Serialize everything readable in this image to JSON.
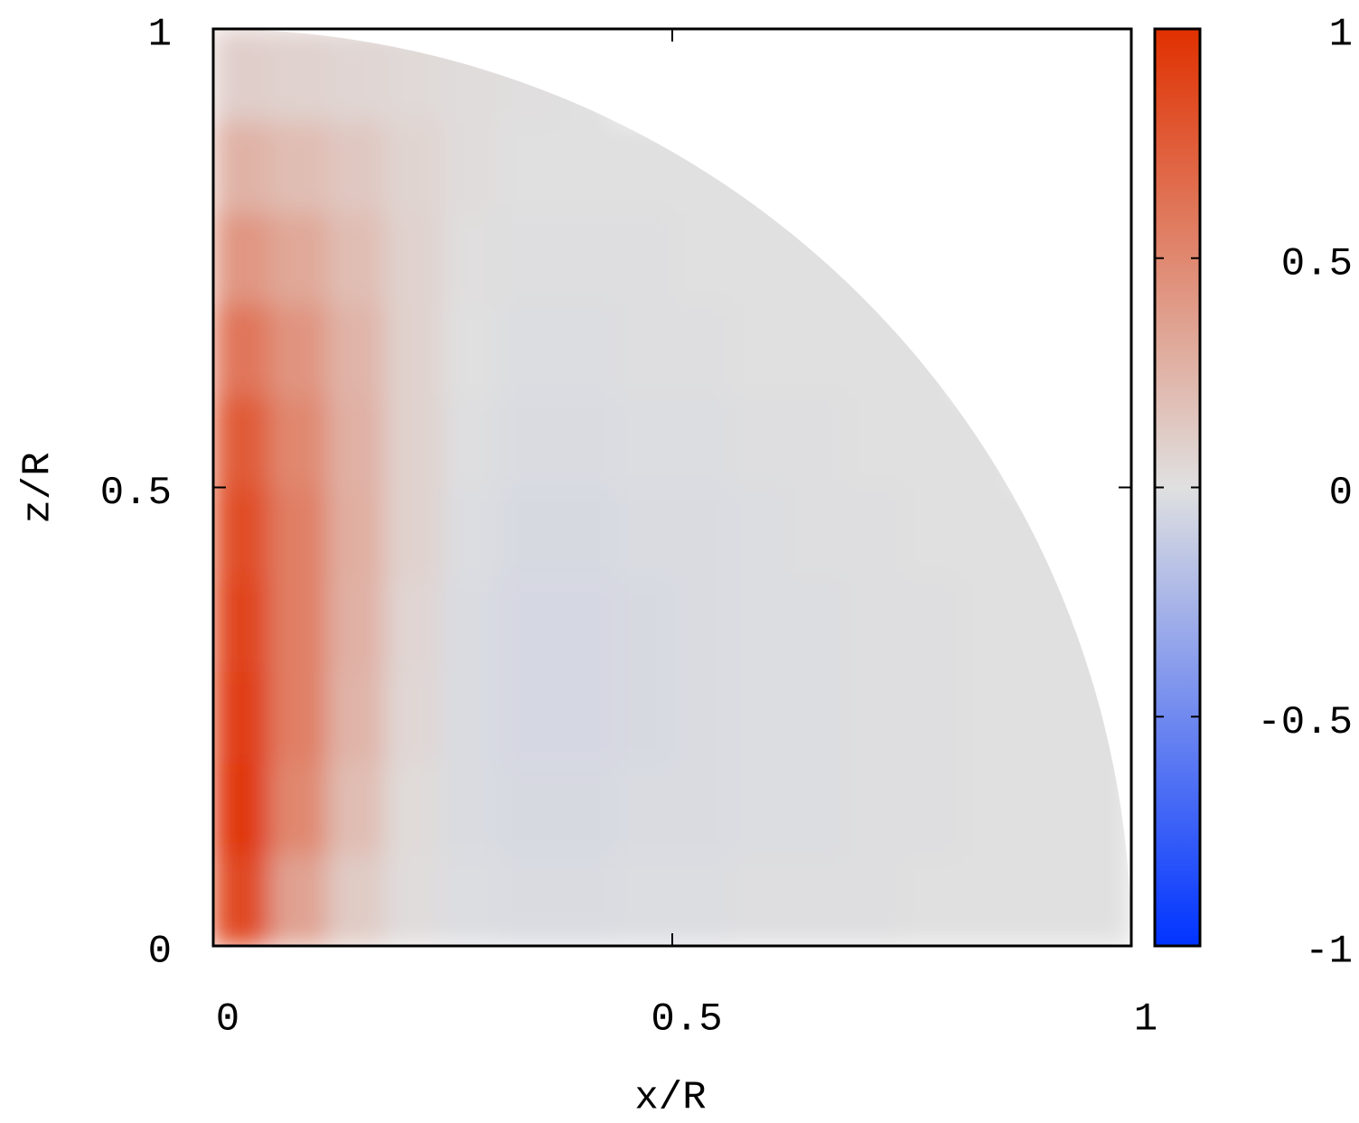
{
  "chart_data": {
    "type": "heatmap",
    "xlabel": "x/R",
    "ylabel": "z/R",
    "xlim": [
      0,
      1
    ],
    "ylim": [
      0,
      1
    ],
    "xticks": [
      0,
      0.5,
      1
    ],
    "yticks": [
      0,
      0.5,
      1
    ],
    "clim": [
      -1,
      1
    ],
    "cticks": [
      -1,
      -0.5,
      0,
      0.5,
      1
    ],
    "colormap": [
      "#0033ff",
      "#e0e0e0",
      "#e03000"
    ],
    "x": [
      0.03125,
      0.09375,
      0.15625,
      0.21875,
      0.28125,
      0.34375,
      0.40625,
      0.46875,
      0.53125,
      0.59375,
      0.65625,
      0.71875,
      0.78125,
      0.84375,
      0.90625,
      0.96875
    ],
    "y": [
      0.05,
      0.15,
      0.25,
      0.35,
      0.45,
      0.55,
      0.65,
      0.75,
      0.85,
      0.95
    ],
    "z": [
      [
        0.85,
        0.35,
        0.12,
        0.02,
        -0.02,
        -0.03,
        -0.03,
        -0.02,
        -0.02,
        -0.01,
        -0.01,
        -0.01,
        0,
        0,
        0,
        0
      ],
      [
        0.95,
        0.5,
        0.2,
        0.03,
        -0.03,
        -0.04,
        -0.04,
        -0.03,
        -0.03,
        -0.02,
        -0.02,
        -0.01,
        -0.01,
        0,
        0,
        0
      ],
      [
        0.92,
        0.55,
        0.25,
        0.05,
        -0.03,
        -0.05,
        -0.05,
        -0.04,
        -0.03,
        -0.02,
        -0.02,
        -0.01,
        -0.01,
        0,
        0,
        0
      ],
      [
        0.88,
        0.55,
        0.27,
        0.06,
        -0.03,
        -0.05,
        -0.05,
        -0.04,
        -0.03,
        -0.02,
        -0.02,
        -0.01,
        -0.01,
        0,
        0,
        0
      ],
      [
        0.83,
        0.55,
        0.28,
        0.08,
        -0.02,
        -0.04,
        -0.04,
        -0.03,
        -0.03,
        -0.02,
        -0.01,
        -0.01,
        0,
        0,
        0,
        null
      ],
      [
        0.75,
        0.5,
        0.27,
        0.08,
        -0.01,
        -0.03,
        -0.03,
        -0.02,
        -0.02,
        -0.01,
        -0.01,
        0,
        0,
        0,
        null,
        null
      ],
      [
        0.6,
        0.43,
        0.25,
        0.08,
        0,
        -0.02,
        -0.02,
        -0.01,
        -0.01,
        0,
        0,
        0,
        0,
        null,
        null,
        null
      ],
      [
        0.42,
        0.32,
        0.2,
        0.08,
        0.01,
        -0.01,
        -0.01,
        -0.01,
        0,
        0,
        0,
        0,
        null,
        null,
        null,
        null
      ],
      [
        0.26,
        0.2,
        0.14,
        0.07,
        0.02,
        0,
        0,
        0,
        0,
        0,
        null,
        null,
        null,
        null,
        null,
        null
      ],
      [
        0.1,
        0.08,
        0.06,
        0.04,
        0.02,
        0.01,
        0,
        null,
        null,
        null,
        null,
        null,
        null,
        null,
        null,
        null
      ]
    ]
  }
}
